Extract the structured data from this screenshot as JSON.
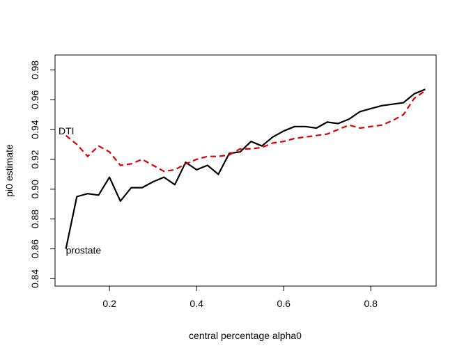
{
  "chart_data": {
    "type": "line",
    "xlabel": "central percentage alpha0",
    "ylabel": "pi0 estimate",
    "xlim": [
      0.075,
      0.95
    ],
    "ylim": [
      0.835,
      0.99
    ],
    "x_ticks": [
      0.2,
      0.4,
      0.6,
      0.8
    ],
    "x_tick_labels": [
      "0.2",
      "0.4",
      "0.6",
      "0.8"
    ],
    "y_ticks": [
      0.84,
      0.86,
      0.88,
      0.9,
      0.92,
      0.94,
      0.96,
      0.98
    ],
    "y_tick_labels": [
      "0.84",
      "0.86",
      "0.88",
      "0.90",
      "0.92",
      "0.94",
      "0.96",
      "0.98"
    ],
    "grid": false,
    "series": [
      {
        "name": "prostate",
        "color": "#000000",
        "dash": "solid",
        "x": [
          0.1,
          0.125,
          0.15,
          0.175,
          0.2,
          0.225,
          0.25,
          0.275,
          0.3,
          0.325,
          0.35,
          0.375,
          0.4,
          0.425,
          0.45,
          0.475,
          0.5,
          0.525,
          0.55,
          0.575,
          0.6,
          0.625,
          0.65,
          0.675,
          0.7,
          0.725,
          0.75,
          0.775,
          0.8,
          0.825,
          0.85,
          0.875,
          0.9,
          0.925
        ],
        "values": [
          0.86,
          0.895,
          0.897,
          0.896,
          0.908,
          0.892,
          0.901,
          0.901,
          0.905,
          0.908,
          0.903,
          0.918,
          0.913,
          0.916,
          0.91,
          0.924,
          0.925,
          0.932,
          0.929,
          0.935,
          0.939,
          0.942,
          0.942,
          0.941,
          0.945,
          0.944,
          0.947,
          0.952,
          0.954,
          0.956,
          0.957,
          0.958,
          0.964,
          0.967
        ]
      },
      {
        "name": "DTI",
        "color": "#e00000",
        "dash": "dashed",
        "x": [
          0.1,
          0.125,
          0.15,
          0.175,
          0.2,
          0.225,
          0.25,
          0.275,
          0.3,
          0.325,
          0.35,
          0.375,
          0.4,
          0.425,
          0.45,
          0.475,
          0.5,
          0.525,
          0.55,
          0.575,
          0.6,
          0.625,
          0.65,
          0.675,
          0.7,
          0.725,
          0.75,
          0.775,
          0.8,
          0.825,
          0.85,
          0.875,
          0.9,
          0.925
        ],
        "values": [
          0.936,
          0.93,
          0.922,
          0.929,
          0.925,
          0.916,
          0.917,
          0.92,
          0.916,
          0.912,
          0.913,
          0.917,
          0.92,
          0.922,
          0.922,
          0.923,
          0.927,
          0.927,
          0.928,
          0.931,
          0.932,
          0.934,
          0.935,
          0.936,
          0.937,
          0.94,
          0.943,
          0.941,
          0.942,
          0.943,
          0.946,
          0.95,
          0.961,
          0.966
        ]
      }
    ],
    "annotations": [
      {
        "text": "DTI",
        "x": 0.083,
        "y": 0.939
      },
      {
        "text": "prostate",
        "x": 0.1,
        "y": 0.859
      }
    ]
  }
}
